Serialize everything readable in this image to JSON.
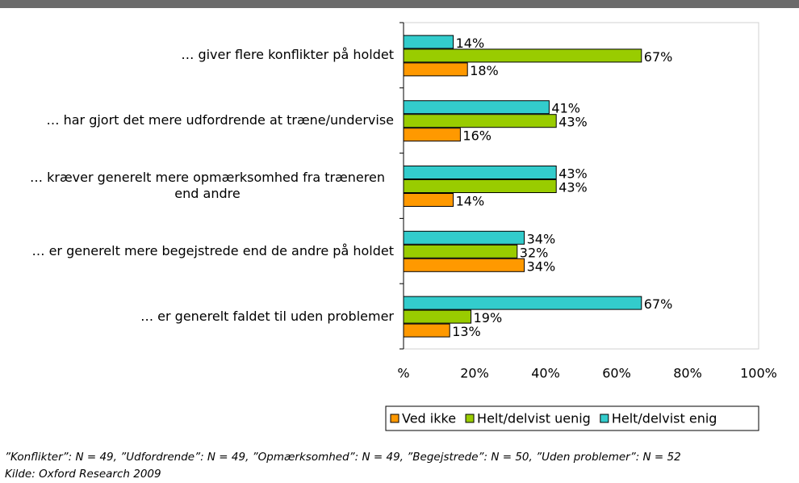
{
  "chart_data": {
    "type": "bar",
    "orientation": "horizontal",
    "categories": [
      "… giver flere konflikter på holdet",
      "… har gjort det mere udfordrende at træne/undervise",
      "… kræver generelt mere opmærksomhed fra træneren end andre",
      "… er generelt mere begejstrede end de andre på holdet",
      "… er generelt faldet til uden problemer"
    ],
    "series": [
      {
        "name": "Ved ikke",
        "color": "#ff9900",
        "values": [
          18,
          16,
          14,
          34,
          13
        ],
        "value_labels": [
          "18%",
          "16%",
          "14%",
          "34%",
          "13%"
        ]
      },
      {
        "name": "Helt/delvist uenig",
        "color": "#99cc00",
        "values": [
          67,
          43,
          43,
          32,
          19
        ],
        "value_labels": [
          "67%",
          "43%",
          "43%",
          "32%",
          "19%"
        ]
      },
      {
        "name": "Helt/delvist enig",
        "color": "#33cccc",
        "values": [
          14,
          41,
          43,
          34,
          67
        ],
        "value_labels": [
          "14%",
          "41%",
          "43%",
          "34%",
          "67%"
        ]
      }
    ],
    "xlim": [
      0,
      100
    ],
    "xticks": [
      {
        "value": 0,
        "label": "%"
      },
      {
        "value": 20,
        "label": "20%"
      },
      {
        "value": 40,
        "label": "40%"
      },
      {
        "value": 60,
        "label": "60%"
      },
      {
        "value": 80,
        "label": "80%"
      },
      {
        "value": 100,
        "label": "100%"
      }
    ],
    "legend": "bottom",
    "notes": [
      "”Konflikter”: N = 49, ”Udfordrende”: N = 49, ”Opmærksomhed”: N = 49, ”Begejstrede”: N = 50, ”Uden problemer”: N = 52",
      "Kilde: Oxford Research 2009"
    ]
  }
}
